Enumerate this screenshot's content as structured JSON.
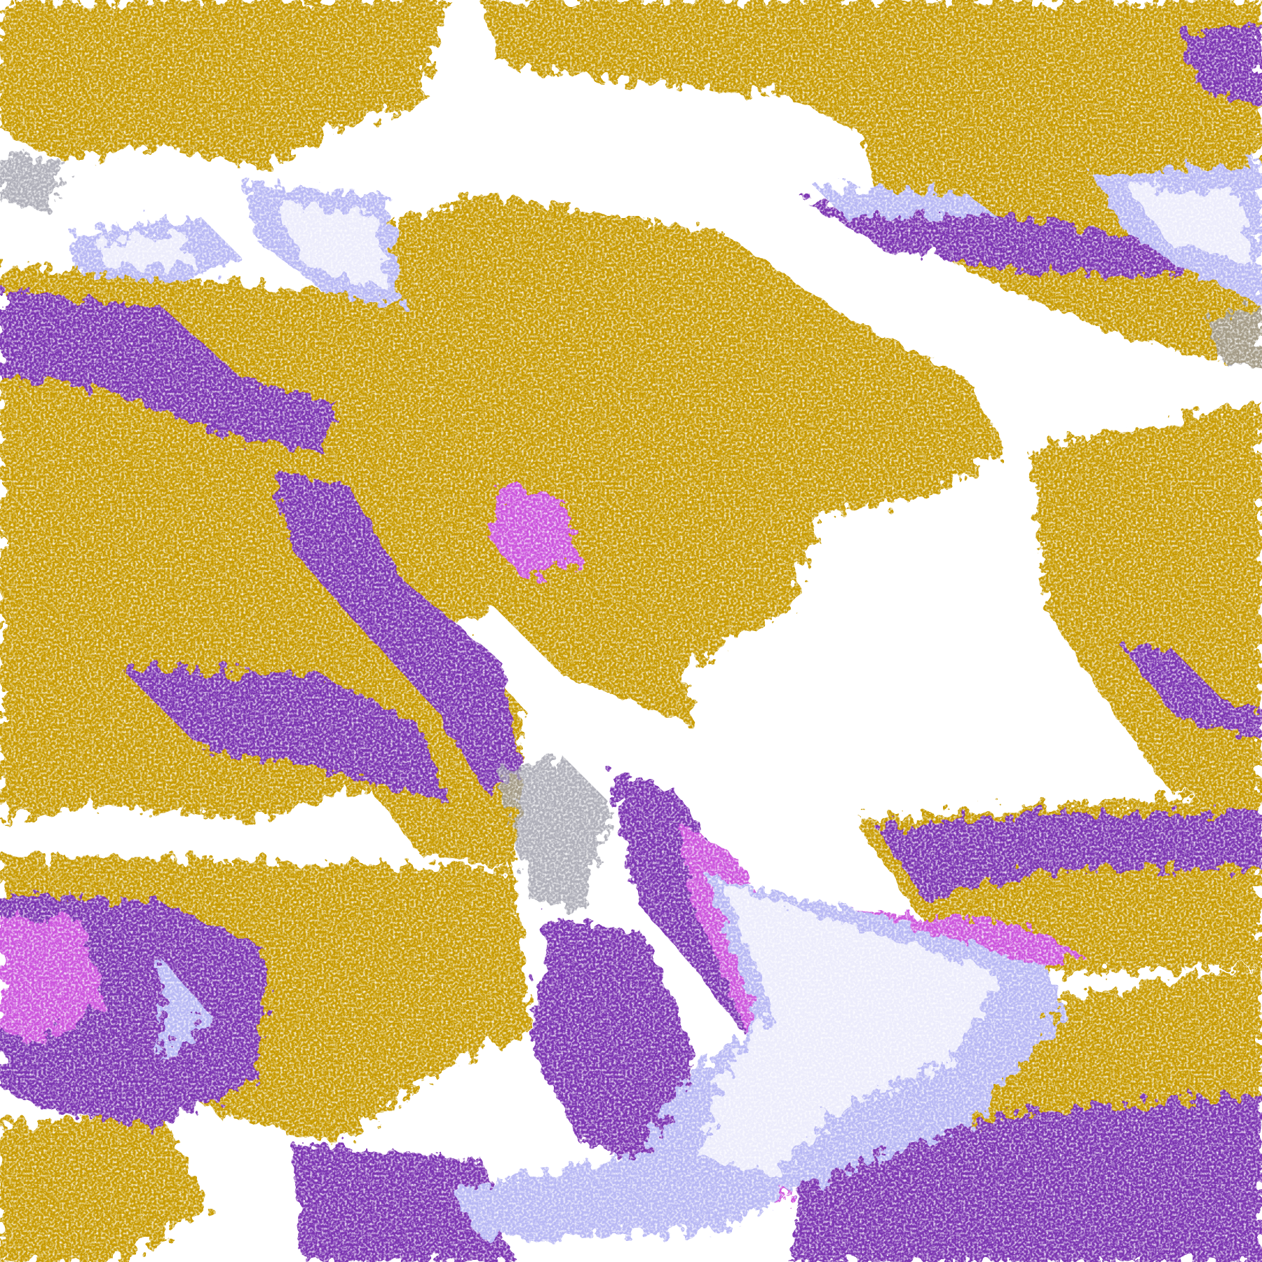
{
  "palette": {
    "background": "#ffffff",
    "gold": "#c89b00",
    "purple": "#7b35b2",
    "magenta": "#cc55dd",
    "lavender": "#b8b8f4",
    "pale": "#ececfc",
    "gray": "#9c9ca8"
  }
}
